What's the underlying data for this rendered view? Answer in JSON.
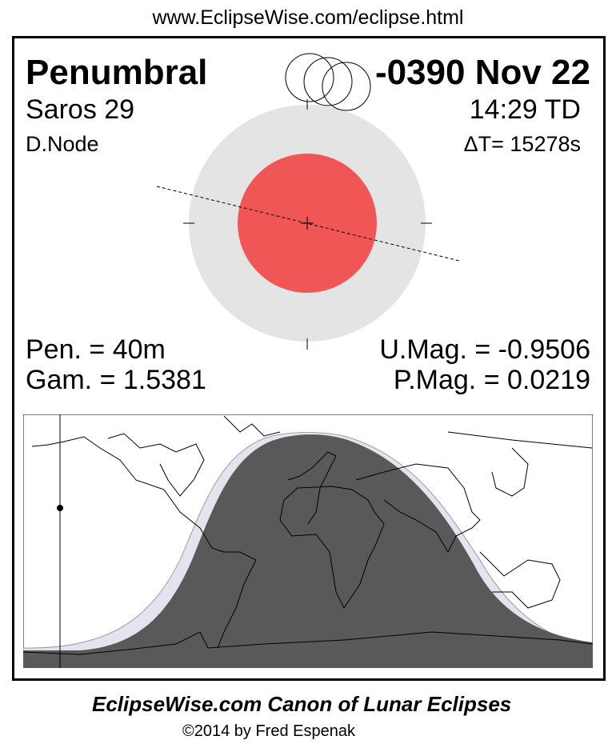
{
  "url": "www.EclipseWise.com/eclipse.html",
  "eclipse": {
    "type": "Penumbral",
    "date": "-0390 Nov 22",
    "saros": "Saros  29",
    "time": "14:29 TD",
    "node": "D.Node",
    "delta_t": "ΔT=  15278s",
    "pen_duration": "Pen. =  40m",
    "gamma": "Gam. = 1.5381",
    "umbral_mag": "U.Mag. = -0.9506",
    "penumbral_mag": "P.Mag. = 0.0219"
  },
  "colors": {
    "umbra": "#f05656",
    "penumbra": "#e4e4e4",
    "night": "#595959",
    "penumbral_band": "#e4e4f0"
  },
  "footer": {
    "title": "EclipseWise.com Canon of Lunar Eclipses",
    "copyright": "©2014 by Fred Espenak"
  }
}
